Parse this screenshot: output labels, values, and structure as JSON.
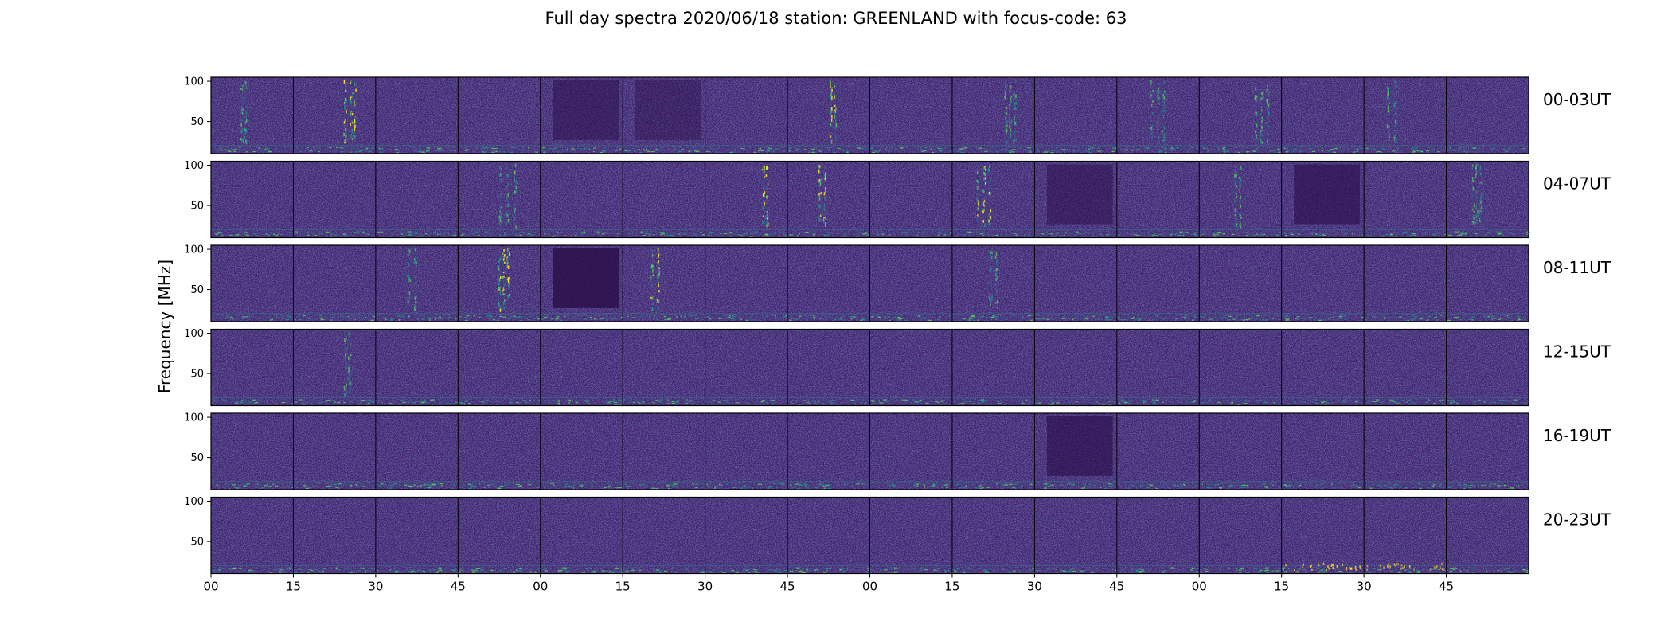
{
  "title": "Full day spectra 2020/06/18 station: GREENLAND with focus-code: 63",
  "chart_data": {
    "type": "heatmap",
    "title": "Full day spectra 2020/06/18 station: GREENLAND with focus-code: 63",
    "ylabel": "Frequency [MHz]",
    "xlabel": "",
    "y_ticks": [
      "100",
      "50"
    ],
    "y_tick_values": [
      100,
      50
    ],
    "ylim": [
      10,
      105
    ],
    "x_ticks": [
      "00",
      "15",
      "30",
      "45",
      "00",
      "15",
      "30",
      "45",
      "00",
      "15",
      "30",
      "45",
      "00",
      "15",
      "30",
      "45"
    ],
    "row_labels": [
      "00-03UT",
      "04-07UT",
      "08-11UT",
      "12-15UT",
      "16-19UT",
      "20-23UT"
    ],
    "panels_per_row": 16,
    "colormap": [
      "#440154",
      "#3b528b",
      "#21918c",
      "#5ec962",
      "#fde725"
    ],
    "background_color": "#3f1f6e",
    "bursts": [
      {
        "row": 0,
        "panel": 0,
        "kind": "vertical",
        "level": 0.6
      },
      {
        "row": 0,
        "panel": 1,
        "kind": "vertical",
        "level": 0.8
      },
      {
        "row": 0,
        "panel": 4,
        "kind": "dark",
        "level": 0.5
      },
      {
        "row": 0,
        "panel": 5,
        "kind": "dark",
        "level": 0.4
      },
      {
        "row": 0,
        "panel": 7,
        "kind": "vertical",
        "level": 0.7
      },
      {
        "row": 0,
        "panel": 9,
        "kind": "vertical",
        "level": 0.5
      },
      {
        "row": 0,
        "panel": 11,
        "kind": "vertical",
        "level": 0.5
      },
      {
        "row": 0,
        "panel": 12,
        "kind": "vertical",
        "level": 0.5
      },
      {
        "row": 0,
        "panel": 14,
        "kind": "vertical",
        "level": 0.6
      },
      {
        "row": 1,
        "panel": 3,
        "kind": "vertical",
        "level": 0.6
      },
      {
        "row": 1,
        "panel": 6,
        "kind": "vertical",
        "level": 0.8
      },
      {
        "row": 1,
        "panel": 7,
        "kind": "vertical",
        "level": 0.7
      },
      {
        "row": 1,
        "panel": 9,
        "kind": "vertical",
        "level": 0.8
      },
      {
        "row": 1,
        "panel": 10,
        "kind": "dark",
        "level": 0.5
      },
      {
        "row": 1,
        "panel": 12,
        "kind": "vertical",
        "level": 0.6
      },
      {
        "row": 1,
        "panel": 13,
        "kind": "dark",
        "level": 0.6
      },
      {
        "row": 1,
        "panel": 15,
        "kind": "vertical",
        "level": 0.4
      },
      {
        "row": 2,
        "panel": 2,
        "kind": "vertical",
        "level": 0.5
      },
      {
        "row": 2,
        "panel": 3,
        "kind": "vertical",
        "level": 0.8
      },
      {
        "row": 2,
        "panel": 4,
        "kind": "dark",
        "level": 0.8
      },
      {
        "row": 2,
        "panel": 5,
        "kind": "vertical",
        "level": 0.7
      },
      {
        "row": 2,
        "panel": 9,
        "kind": "vertical",
        "level": 0.5
      },
      {
        "row": 3,
        "panel": 1,
        "kind": "vertical",
        "level": 0.6
      },
      {
        "row": 4,
        "panel": 10,
        "kind": "dark",
        "level": 0.6
      },
      {
        "row": 5,
        "panel": 13,
        "kind": "floor",
        "level": 0.8
      },
      {
        "row": 5,
        "panel": 14,
        "kind": "floor",
        "level": 0.6
      }
    ]
  }
}
